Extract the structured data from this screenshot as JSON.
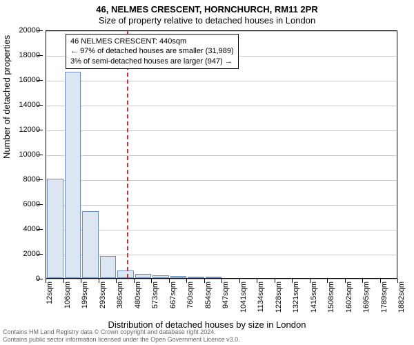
{
  "title": "46, NELMES CRESCENT, HORNCHURCH, RM11 2PR",
  "subtitle": "Size of property relative to detached houses in London",
  "ylabel": "Number of detached properties",
  "xlabel": "Distribution of detached houses by size in London",
  "footer_line1": "Contains HM Land Registry data © Crown copyright and database right 2024.",
  "footer_line2": "Contains public sector information licensed under the Open Government Licence v3.0.",
  "info_line1": "46 NELMES CRESCENT: 440sqm",
  "info_line2": "← 97% of detached houses are smaller (31,989)",
  "info_line3": "3% of semi-detached houses are larger (947) →",
  "chart": {
    "type": "histogram",
    "bar_fill": "#dce6f2",
    "bar_stroke": "#6a8fc0",
    "grid_color": "#cccccc",
    "vline_color": "#d03030",
    "background": "#ffffff",
    "title_fontsize": 13,
    "label_fontsize": 13,
    "tick_fontsize": 11,
    "info_fontsize": 11,
    "ylim": [
      0,
      20000
    ],
    "ytick_step": 2000,
    "yticks": [
      0,
      2000,
      4000,
      6000,
      8000,
      10000,
      12000,
      14000,
      16000,
      18000,
      20000
    ],
    "xtick_labels": [
      "12sqm",
      "106sqm",
      "199sqm",
      "293sqm",
      "386sqm",
      "480sqm",
      "573sqm",
      "667sqm",
      "760sqm",
      "854sqm",
      "947sqm",
      "1041sqm",
      "1134sqm",
      "1228sqm",
      "1321sqm",
      "1415sqm",
      "1508sqm",
      "1602sqm",
      "1695sqm",
      "1789sqm",
      "1882sqm"
    ],
    "bars": [
      {
        "x_index": 0,
        "value": 8000
      },
      {
        "x_index": 1,
        "value": 16600
      },
      {
        "x_index": 2,
        "value": 5400
      },
      {
        "x_index": 3,
        "value": 1800
      },
      {
        "x_index": 4,
        "value": 600
      },
      {
        "x_index": 5,
        "value": 350
      },
      {
        "x_index": 6,
        "value": 200
      },
      {
        "x_index": 7,
        "value": 150
      },
      {
        "x_index": 8,
        "value": 100
      },
      {
        "x_index": 9,
        "value": 80
      }
    ],
    "vline_x_value": 440,
    "x_min": 12,
    "x_max": 1882
  }
}
